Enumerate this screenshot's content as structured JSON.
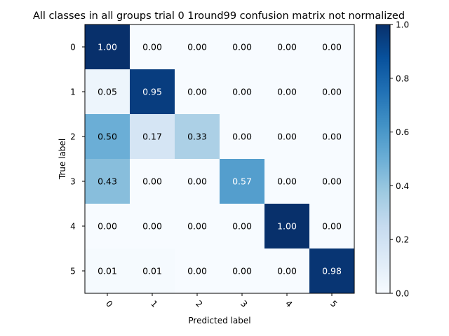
{
  "chart_data": {
    "type": "heatmap",
    "title": "All classes in all groups trial 0 1round99 confusion matrix not normalized",
    "xlabel": "Predicted label",
    "ylabel": "True label",
    "x_ticks": [
      "0",
      "1",
      "2",
      "3",
      "4",
      "5"
    ],
    "y_ticks": [
      "0",
      "1",
      "2",
      "3",
      "4",
      "5"
    ],
    "matrix": [
      [
        1.0,
        0.0,
        0.0,
        0.0,
        0.0,
        0.0
      ],
      [
        0.05,
        0.95,
        0.0,
        0.0,
        0.0,
        0.0
      ],
      [
        0.5,
        0.17,
        0.33,
        0.0,
        0.0,
        0.0
      ],
      [
        0.43,
        0.0,
        0.0,
        0.57,
        0.0,
        0.0
      ],
      [
        0.0,
        0.0,
        0.0,
        0.0,
        1.0,
        0.0
      ],
      [
        0.01,
        0.01,
        0.0,
        0.0,
        0.0,
        0.98
      ]
    ],
    "value_format": "0.00",
    "colorbar": {
      "colormap": "Blues",
      "range": [
        0.0,
        1.0
      ],
      "ticks": [
        "0.0",
        "0.2",
        "0.4",
        "0.6",
        "0.8",
        "1.0"
      ]
    },
    "grid": false
  }
}
